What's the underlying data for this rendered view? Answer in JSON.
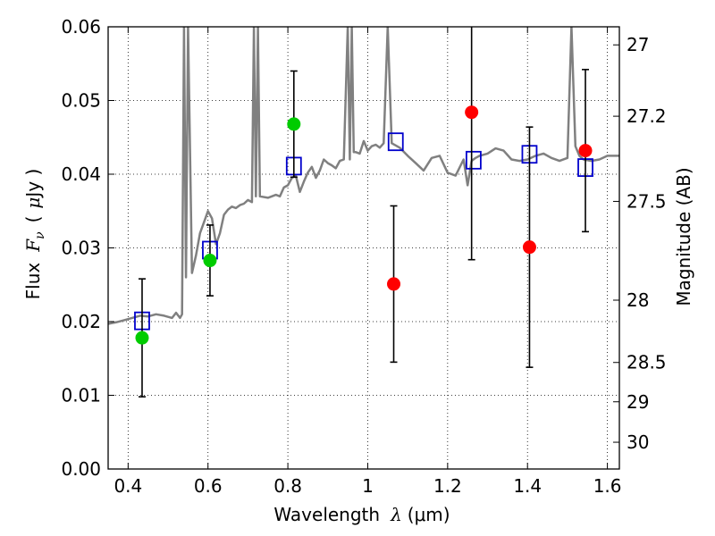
{
  "chart_data": {
    "type": "scatter",
    "xlabel": "Wavelength  λ (μm)",
    "xlabel_parts": {
      "prefix": "Wavelength",
      "symbol": "λ",
      "unit": "(μm)"
    },
    "ylabel": "Flux  Fν  ( μJy )",
    "ylabel_parts": {
      "prefix": "Flux",
      "symbol": "F",
      "subscript": "ν",
      "unit_open": "(",
      "unit_mu": "μ",
      "unit_rest": "Jy )"
    },
    "ylabel_right": "Magnitude (AB)",
    "xlim": [
      0.35,
      1.63
    ],
    "ylim": [
      0.0,
      0.06
    ],
    "grid": true,
    "x_ticks": [
      0.4,
      0.6,
      0.8,
      1.0,
      1.2,
      1.4,
      1.6
    ],
    "x_tick_labels": [
      "0.4",
      "0.6",
      "0.8",
      "1",
      "1.2",
      "1.4",
      "1.6"
    ],
    "y_ticks": [
      0.0,
      0.01,
      0.02,
      0.03,
      0.04,
      0.05,
      0.06
    ],
    "y_tick_labels": [
      "0.00",
      "0.01",
      "0.02",
      "0.03",
      "0.04",
      "0.05",
      "0.06"
    ],
    "right_ticks": [
      {
        "mag": 27,
        "label": "27"
      },
      {
        "mag": 27.2,
        "label": "27.2"
      },
      {
        "mag": 27.5,
        "label": "27.5"
      },
      {
        "mag": 28,
        "label": "28"
      },
      {
        "mag": 28.5,
        "label": "28.5"
      },
      {
        "mag": 29,
        "label": "29"
      },
      {
        "mag": 30,
        "label": "30"
      }
    ],
    "series": [
      {
        "kind": "line",
        "color": "#808080",
        "x": [
          0.35,
          0.37,
          0.39,
          0.41,
          0.43,
          0.45,
          0.47,
          0.49,
          0.51,
          0.52,
          0.53,
          0.535,
          0.54,
          0.545,
          0.55,
          0.56,
          0.57,
          0.58,
          0.59,
          0.6,
          0.61,
          0.62,
          0.63,
          0.64,
          0.65,
          0.66,
          0.67,
          0.68,
          0.69,
          0.7,
          0.71,
          0.715,
          0.72,
          0.725,
          0.73,
          0.75,
          0.77,
          0.78,
          0.79,
          0.8,
          0.81,
          0.82,
          0.83,
          0.84,
          0.85,
          0.86,
          0.87,
          0.88,
          0.89,
          0.9,
          0.91,
          0.92,
          0.93,
          0.94,
          0.95,
          0.955,
          0.96,
          0.965,
          0.97,
          0.98,
          0.99,
          1.0,
          1.01,
          1.02,
          1.03,
          1.04,
          1.05,
          1.06,
          1.08,
          1.1,
          1.12,
          1.14,
          1.16,
          1.18,
          1.2,
          1.22,
          1.24,
          1.25,
          1.26,
          1.27,
          1.28,
          1.3,
          1.32,
          1.34,
          1.36,
          1.38,
          1.4,
          1.42,
          1.44,
          1.46,
          1.48,
          1.5,
          1.51,
          1.52,
          1.53,
          1.54,
          1.56,
          1.58,
          1.6,
          1.63
        ],
        "y": [
          0.0197,
          0.0199,
          0.0202,
          0.0205,
          0.0208,
          0.0207,
          0.021,
          0.0208,
          0.0205,
          0.0212,
          0.0205,
          0.021,
          0.06,
          0.026,
          0.06,
          0.0266,
          0.029,
          0.032,
          0.0335,
          0.035,
          0.034,
          0.0305,
          0.032,
          0.0345,
          0.0352,
          0.0356,
          0.0354,
          0.0358,
          0.036,
          0.0365,
          0.0362,
          0.06,
          0.037,
          0.06,
          0.037,
          0.0368,
          0.0372,
          0.037,
          0.0382,
          0.0385,
          0.0395,
          0.0398,
          0.0376,
          0.039,
          0.0402,
          0.041,
          0.0395,
          0.0405,
          0.042,
          0.0415,
          0.0412,
          0.0408,
          0.0418,
          0.042,
          0.06,
          0.042,
          0.06,
          0.043,
          0.043,
          0.0428,
          0.0445,
          0.0432,
          0.0438,
          0.044,
          0.0436,
          0.0442,
          0.06,
          0.0442,
          0.0436,
          0.0425,
          0.0415,
          0.0405,
          0.0422,
          0.0425,
          0.0402,
          0.0398,
          0.042,
          0.0385,
          0.0418,
          0.0422,
          0.0425,
          0.0428,
          0.0435,
          0.0432,
          0.042,
          0.0418,
          0.042,
          0.0425,
          0.0428,
          0.0422,
          0.0418,
          0.0422,
          0.06,
          0.0438,
          0.0425,
          0.042,
          0.0418,
          0.042,
          0.0425,
          0.0425
        ]
      },
      {
        "kind": "boxes",
        "color": "#0000cc",
        "x": [
          0.435,
          0.605,
          0.815,
          1.07,
          1.265,
          1.405,
          1.545
        ],
        "y": [
          0.0201,
          0.0297,
          0.0411,
          0.0444,
          0.0419,
          0.0427,
          0.0409
        ]
      },
      {
        "kind": "points",
        "color": "#00cc00",
        "x": [
          0.435,
          0.605,
          0.815
        ],
        "y": [
          0.0178,
          0.0283,
          0.0468
        ],
        "err": [
          0.008,
          0.0048,
          0.0072
        ]
      },
      {
        "kind": "points",
        "color": "#ff0000",
        "x": [
          1.065,
          1.26,
          1.405,
          1.545
        ],
        "y": [
          0.0251,
          0.0484,
          0.0301,
          0.0432
        ],
        "err": [
          0.0106,
          0.02,
          0.0163,
          0.011
        ]
      }
    ]
  }
}
